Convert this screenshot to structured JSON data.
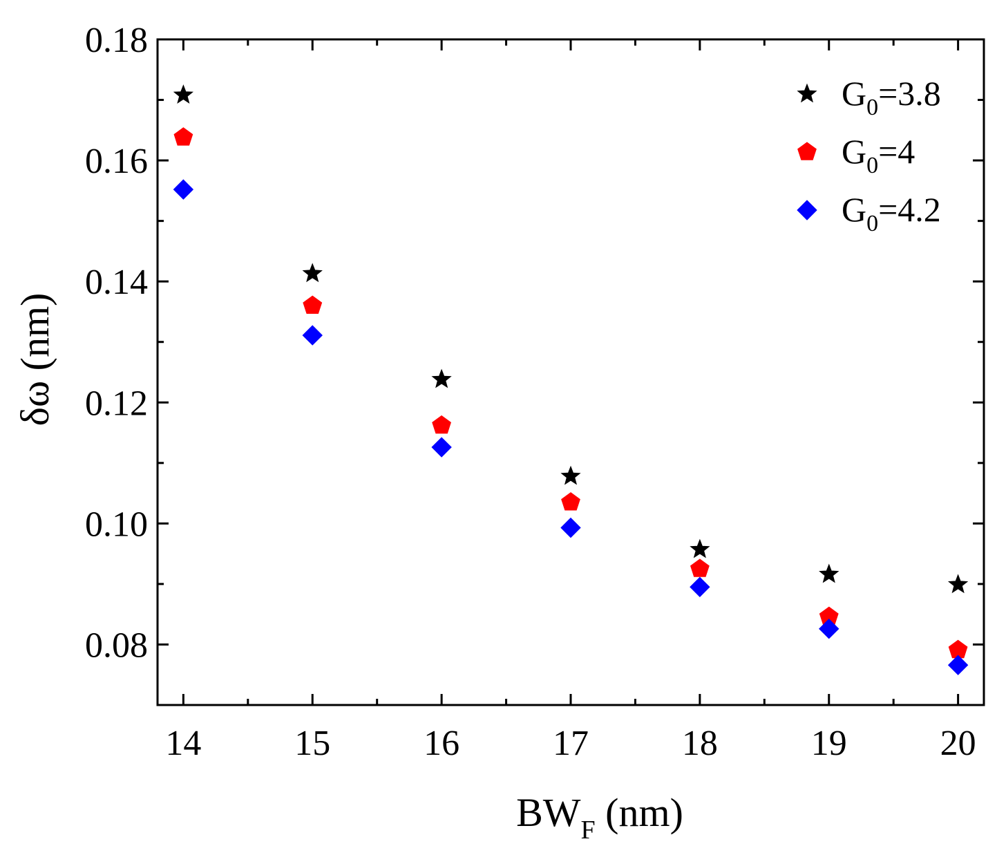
{
  "chart_data": {
    "type": "scatter",
    "title": "",
    "xlabel": {
      "main": "BW",
      "sub": "F",
      "rest": " (nm)"
    },
    "ylabel": "δω (nm)",
    "xlim": [
      13.8,
      20.2
    ],
    "ylim": [
      0.07,
      0.18
    ],
    "xticks": [
      14,
      15,
      16,
      17,
      18,
      19,
      20
    ],
    "xtick_labels": [
      "14",
      "15",
      "16",
      "17",
      "18",
      "19",
      "20"
    ],
    "yticks": [
      0.08,
      0.1,
      0.12,
      0.14,
      0.16,
      0.18
    ],
    "ytick_labels": [
      "0.08",
      "0.10",
      "0.12",
      "0.14",
      "0.16",
      "0.18"
    ],
    "x": [
      14,
      15,
      16,
      17,
      18,
      19,
      20
    ],
    "legend_position": "top-right",
    "series": [
      {
        "name": "G0=3.8",
        "label_main": "G",
        "label_sub": "0",
        "label_rest": "=3.8",
        "marker": "star",
        "color": "#000000",
        "values": [
          0.1708,
          0.1413,
          0.1238,
          0.1078,
          0.0957,
          0.0916,
          0.0899
        ]
      },
      {
        "name": "G0=4",
        "label_main": "G",
        "label_sub": "0",
        "label_rest": "=4",
        "marker": "pentagon",
        "color": "#ff0000",
        "values": [
          0.1638,
          0.136,
          0.1162,
          0.1035,
          0.0925,
          0.0846,
          0.0791
        ]
      },
      {
        "name": "G0=4.2",
        "label_main": "G",
        "label_sub": "0",
        "label_rest": "=4.2",
        "marker": "diamond",
        "color": "#0000ff",
        "values": [
          0.1552,
          0.1311,
          0.1126,
          0.0993,
          0.0895,
          0.0826,
          0.0766
        ]
      }
    ]
  }
}
